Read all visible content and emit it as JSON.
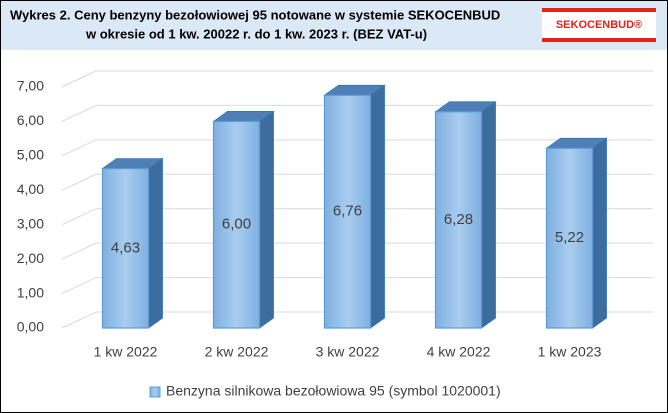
{
  "chart_data": {
    "type": "bar3d",
    "title": "Wykres 2. Ceny benzyny bezołowiowej 95 notowane w systemie SEKOCENBUD",
    "subtitle": "w okresie od 1 kw. 20022 r. do 1 kw. 2023 r. (BEZ VAT-u)",
    "logo": "SEKOCENBUD®",
    "categories": [
      "1 kw 2022",
      "2 kw 2022",
      "3 kw 2022",
      "4 kw 2022",
      "1 kw 2023"
    ],
    "series": [
      {
        "name": "Benzyna silnikowa bezołowiowa 95 (symbol 1020001)",
        "color": "#5b9bd5",
        "values": [
          4.63,
          6.0,
          6.76,
          6.28,
          5.22
        ],
        "value_labels": [
          "4,63",
          "6,00",
          "6,76",
          "6,28",
          "5,22"
        ]
      }
    ],
    "ylim": [
      0,
      7
    ],
    "yticks": [
      {
        "value": 0,
        "label": "0,00"
      },
      {
        "value": 1,
        "label": "1,00"
      },
      {
        "value": 2,
        "label": "2,00"
      },
      {
        "value": 3,
        "label": "3,00"
      },
      {
        "value": 4,
        "label": "4,00"
      },
      {
        "value": 5,
        "label": "5,00"
      },
      {
        "value": 6,
        "label": "6,00"
      },
      {
        "value": 7,
        "label": "7,00"
      }
    ],
    "grid": true,
    "legend": "bottom"
  }
}
